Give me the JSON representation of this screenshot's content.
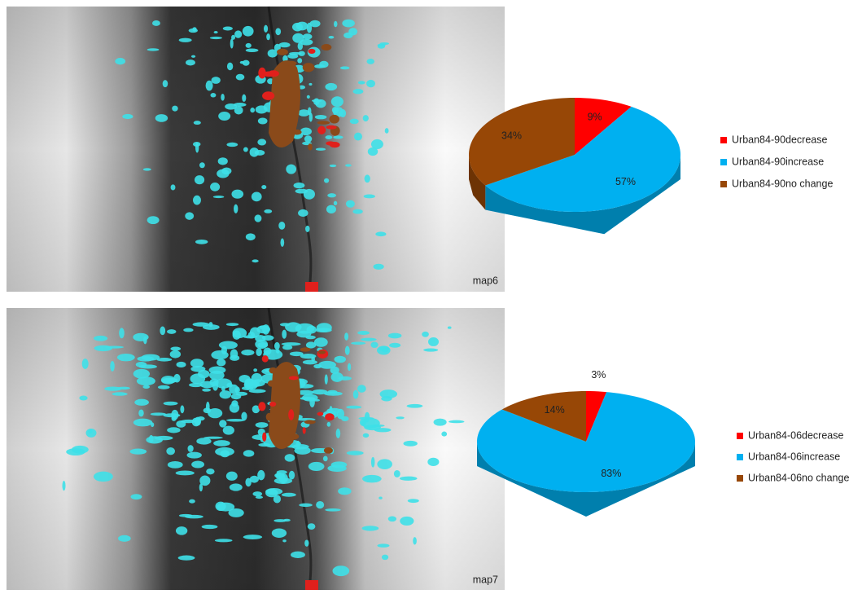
{
  "chart_data": [
    {
      "type": "pie",
      "categories": [
        "Urban84-90decrease",
        "Urban84-90increase",
        "Urban84-90no change"
      ],
      "values": [
        9,
        57,
        34
      ],
      "value_labels": [
        "9%",
        "57%",
        "34%"
      ],
      "colors": [
        "#ff0000",
        "#00b0f0",
        "#974706"
      ]
    },
    {
      "type": "pie",
      "categories": [
        "Urban84-06decrease",
        "Urban84-06increase",
        "Urban84-06no change"
      ],
      "values": [
        3,
        83,
        14
      ],
      "value_labels": [
        "3%",
        "83%",
        "14%"
      ],
      "colors": [
        "#ff0000",
        "#00b0f0",
        "#974706"
      ]
    }
  ],
  "maps": [
    {
      "label": "map6"
    },
    {
      "label": "map7"
    }
  ]
}
